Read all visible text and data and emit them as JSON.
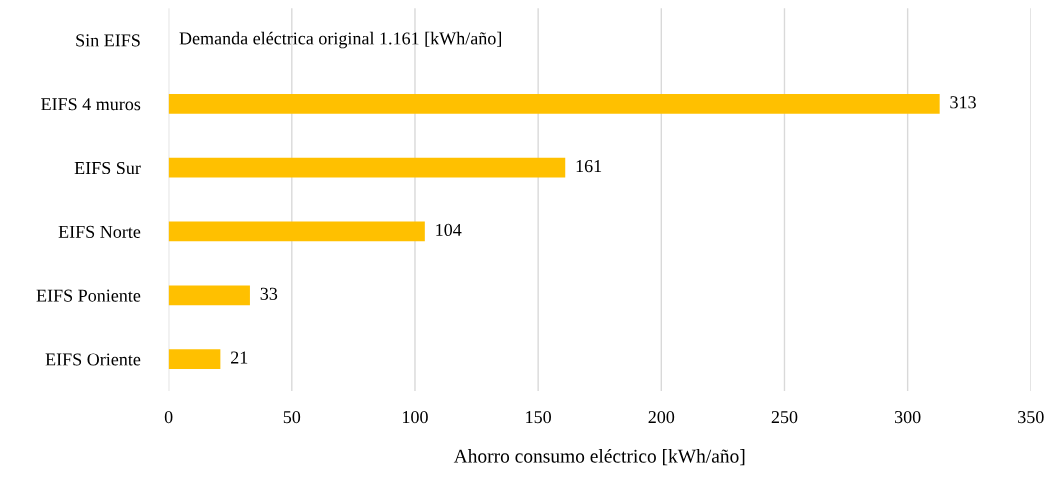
{
  "chart_data": {
    "type": "bar",
    "orientation": "horizontal",
    "categories": [
      "Sin EIFS",
      "EIFS 4 muros",
      "EIFS Sur",
      "EIFS Norte",
      "EIFS Poniente",
      "EIFS Oriente"
    ],
    "values": [
      null,
      313,
      161,
      104,
      33,
      21
    ],
    "value_labels": [
      null,
      "313",
      "161",
      "104",
      "33",
      "21"
    ],
    "color": "#ffc000",
    "xlabel": "Ahorro consumo eléctrico [kWh/año]",
    "xlim": [
      0,
      350
    ],
    "xticks": [
      0,
      50,
      100,
      150,
      200,
      250,
      300,
      350
    ],
    "grid": "x",
    "legend": false,
    "annotations": [
      "Demanda eléctrica original 1.161 [kWh/año]"
    ]
  }
}
